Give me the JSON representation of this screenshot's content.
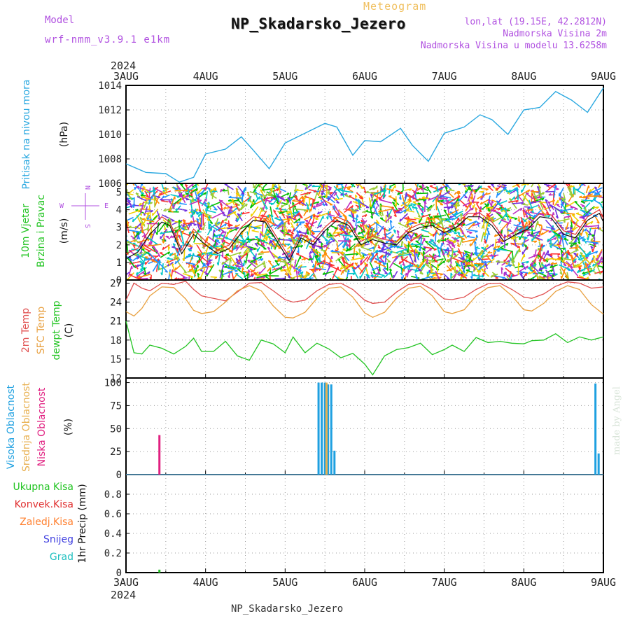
{
  "header": {
    "title": "NP_Skadarsko_Jezero",
    "meteogram": "Meteogram",
    "model_label": "Model",
    "model_value": "wrf-nmm_v3.9.1 e1km",
    "location": "lon,lat (19.15E, 42.2812N)",
    "elevation": "Nadmorska Visina 2m",
    "model_elevation": "Nadmorska Visina u modelu 13.6258m"
  },
  "footer": {
    "station": "NP_Skadarsko_Jezero"
  },
  "watermark": "made by Angel",
  "colors": {
    "pressure": "#2aa8e0",
    "speed": "#111111",
    "gust": "#e03030",
    "t2m": "#e05050",
    "tsfc": "#e8a040",
    "dewpt": "#22c422",
    "cloud_high": "#1ea0e0",
    "cloud_mid": "#e8b050",
    "cloud_low": "#e02080",
    "total_precip": "#22c422",
    "conv_precip": "#e03030",
    "frozen": "#ff8030",
    "snow": "#4040e0",
    "graupel": "#20c0c0"
  },
  "chart_data": [
    {
      "id": "pressure",
      "type": "line",
      "ylabel": [
        "Pritisak na nivou mora",
        "(hPa)"
      ],
      "ylim": [
        1006,
        1014
      ],
      "yticks": [
        1006,
        1008,
        1010,
        1012,
        1014
      ],
      "x_days": [
        0,
        0.25,
        0.5,
        0.67,
        0.85,
        1,
        1.25,
        1.45,
        1.6,
        1.8,
        2,
        2.25,
        2.5,
        2.65,
        2.85,
        3,
        3.2,
        3.45,
        3.6,
        3.8,
        4,
        4.25,
        4.45,
        4.6,
        4.8,
        5,
        5.2,
        5.4,
        5.6,
        5.8,
        6
      ],
      "series": [
        {
          "values": [
            1007.6,
            1006.9,
            1006.8,
            1006.1,
            1006.5,
            1008.4,
            1008.8,
            1009.8,
            1008.7,
            1007.2,
            1009.3,
            1010.1,
            1010.9,
            1010.6,
            1008.3,
            1009.5,
            1009.4,
            1010.5,
            1009.1,
            1007.8,
            1010.1,
            1010.6,
            1011.6,
            1011.2,
            1010.0,
            1012.0,
            1012.2,
            1013.5,
            1012.8,
            1011.8,
            1013.8
          ]
        }
      ]
    },
    {
      "id": "wind",
      "type": "line",
      "ylabel": [
        "10m Vjetar",
        "Brzina i Pravac",
        "(m/s)"
      ],
      "compass": [
        "N",
        "E",
        "W",
        "S"
      ],
      "ylim": [
        0,
        5.5
      ],
      "yticks": [
        0,
        1,
        2,
        3,
        4,
        5
      ],
      "x_days": [
        0,
        0.15,
        0.3,
        0.45,
        0.55,
        0.7,
        0.85,
        1.0,
        1.15,
        1.3,
        1.45,
        1.6,
        1.75,
        1.9,
        2.05,
        2.2,
        2.35,
        2.5,
        2.65,
        2.8,
        2.95,
        3.1,
        3.25,
        3.4,
        3.55,
        3.7,
        3.85,
        4.0,
        4.15,
        4.3,
        4.45,
        4.6,
        4.75,
        4.9,
        5.05,
        5.2,
        5.35,
        5.5,
        5.65,
        5.8,
        5.95,
        6.0
      ],
      "series": [
        {
          "name": "speed",
          "values": [
            1.2,
            1.6,
            2.6,
            3.3,
            3.1,
            1.5,
            2.6,
            2.0,
            1.5,
            1.8,
            2.7,
            3.4,
            3.3,
            2.2,
            1.1,
            2.4,
            2.0,
            2.8,
            3.4,
            3.1,
            2.0,
            2.3,
            2.1,
            2.0,
            2.7,
            3.0,
            3.1,
            2.7,
            3.0,
            3.6,
            3.6,
            3.1,
            2.2,
            2.6,
            2.9,
            3.6,
            3.5,
            2.6,
            2.4,
            3.4,
            3.8,
            3.3
          ]
        },
        {
          "name": "gust",
          "values": [
            1.5,
            1.8,
            2.9,
            3.6,
            3.3,
            1.7,
            2.9,
            2.2,
            1.7,
            2.0,
            3.0,
            3.6,
            3.5,
            2.4,
            1.3,
            2.6,
            2.2,
            3.0,
            3.6,
            3.3,
            2.2,
            2.5,
            2.3,
            2.2,
            2.9,
            3.2,
            3.3,
            2.9,
            3.2,
            3.8,
            3.8,
            3.3,
            2.4,
            2.8,
            3.1,
            3.8,
            3.7,
            2.8,
            2.6,
            3.6,
            4.0,
            3.5
          ]
        }
      ]
    },
    {
      "id": "temperature",
      "type": "line",
      "ylabel": [
        "2m Temp",
        "SFC Temp",
        "dewpt Temp",
        "(C)"
      ],
      "ylim": [
        12,
        27.5
      ],
      "yticks": [
        12,
        15,
        18,
        21,
        24,
        27
      ],
      "x_days": [
        0,
        0.1,
        0.2,
        0.3,
        0.45,
        0.6,
        0.75,
        0.85,
        0.95,
        1.1,
        1.25,
        1.4,
        1.55,
        1.7,
        1.85,
        2.0,
        2.1,
        2.25,
        2.4,
        2.55,
        2.7,
        2.85,
        3.0,
        3.1,
        3.25,
        3.4,
        3.55,
        3.7,
        3.85,
        4.0,
        4.1,
        4.25,
        4.4,
        4.55,
        4.7,
        4.85,
        5.0,
        5.1,
        5.25,
        5.4,
        5.55,
        5.7,
        5.85,
        6.0
      ],
      "series": [
        {
          "name": "2m Temp",
          "values": [
            24.3,
            27.0,
            26.2,
            25.8,
            27.0,
            26.8,
            27.3,
            26.0,
            25.0,
            24.6,
            24.2,
            25.6,
            27.0,
            27.1,
            25.8,
            24.4,
            24.0,
            24.3,
            25.8,
            26.8,
            27.0,
            26.0,
            24.3,
            23.8,
            24.0,
            25.6,
            26.8,
            27.0,
            26.0,
            24.5,
            24.4,
            24.8,
            26.0,
            26.9,
            27.0,
            26.0,
            24.8,
            24.6,
            25.3,
            26.5,
            27.2,
            27.0,
            26.2,
            26.4
          ]
        },
        {
          "name": "SFC Temp",
          "values": [
            22.5,
            21.8,
            23.0,
            25.0,
            26.4,
            26.3,
            24.5,
            22.7,
            22.2,
            22.5,
            24.0,
            25.8,
            26.6,
            25.8,
            23.4,
            21.6,
            21.5,
            22.4,
            24.6,
            26.2,
            26.4,
            24.8,
            22.3,
            21.6,
            22.4,
            24.6,
            26.2,
            26.5,
            25.0,
            22.5,
            22.2,
            22.8,
            25.0,
            26.3,
            26.6,
            25.0,
            22.8,
            22.6,
            23.8,
            25.7,
            26.6,
            26.0,
            23.6,
            22.1
          ]
        },
        {
          "name": "dewpt Temp",
          "values": [
            21.0,
            16.0,
            15.8,
            17.2,
            16.7,
            15.8,
            17.0,
            18.3,
            16.2,
            16.2,
            17.8,
            15.5,
            14.8,
            18.0,
            17.4,
            16.0,
            18.5,
            16.0,
            17.5,
            16.6,
            15.2,
            15.9,
            14.2,
            12.5,
            15.5,
            16.5,
            16.8,
            17.5,
            15.7,
            16.5,
            17.2,
            16.2,
            18.4,
            17.6,
            17.8,
            17.5,
            17.4,
            17.9,
            18.0,
            19.0,
            17.6,
            18.5,
            18.0,
            18.5
          ]
        }
      ]
    },
    {
      "id": "clouds",
      "type": "bar",
      "ylabel": [
        "Visoka Oblacnost",
        "Srednja Oblacnost",
        "Niska Oblacnost",
        "(%)"
      ],
      "ylim": [
        0,
        105
      ],
      "yticks": [
        0,
        25,
        50,
        75,
        100
      ],
      "series": [
        {
          "name": "Visoka Oblacnost",
          "x_days": [
            2.42,
            2.46,
            2.5,
            2.54,
            2.58,
            2.62,
            5.9,
            5.94
          ],
          "values": [
            100,
            100,
            100,
            98,
            98,
            26,
            99,
            23
          ]
        },
        {
          "name": "Srednja Oblacnost",
          "x_days": [
            2.52
          ],
          "values": [
            100
          ]
        },
        {
          "name": "Niska Oblacnost",
          "x_days": [
            0.42
          ],
          "values": [
            43
          ]
        }
      ]
    },
    {
      "id": "precip",
      "type": "bar",
      "ylabel": [
        "1hr Precip (mm)"
      ],
      "legend": [
        "Ukupna Kisa",
        "Konvek.Kisa",
        "Zaledj.Kisa",
        "Snijeg",
        "Grad"
      ],
      "ylim": [
        0,
        1.0
      ],
      "yticks": [
        0,
        0.2,
        0.4,
        0.6,
        0.8
      ],
      "series": [
        {
          "name": "Ukupna Kisa",
          "x_days": [
            0.42
          ],
          "values": [
            0.03
          ]
        }
      ]
    }
  ],
  "time_axis": {
    "year": "2024",
    "ticks": [
      "3AUG",
      "4AUG",
      "5AUG",
      "6AUG",
      "7AUG",
      "8AUG",
      "9AUG"
    ]
  }
}
